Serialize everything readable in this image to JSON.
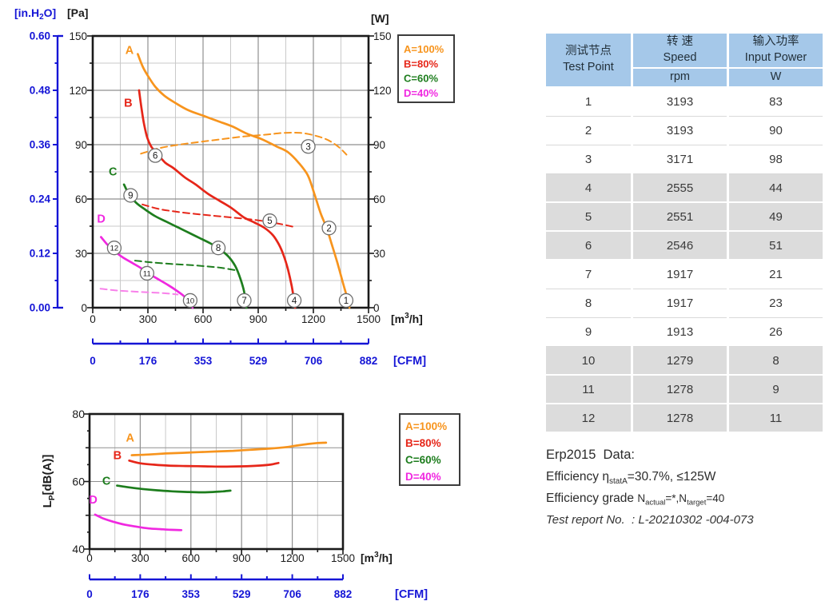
{
  "colors": {
    "orange": "#F7941D",
    "red": "#E62619",
    "green": "#1D7D1D",
    "magenta": "#F028E0",
    "magenta_dash": "#F880EA",
    "blue": "#1515D6",
    "grid_major": "#8F8F8F",
    "grid_minor": "#C9C9C9",
    "frame": "#1A1A1A",
    "tick_text": "#1a1a1a",
    "table_header_bg": "#A5C8E9",
    "table_row_gray": "#DCDCDC",
    "point_circle_stroke": "#6e6e6e"
  },
  "chart_data": [
    {
      "id": "pq-power-chart",
      "type": "line",
      "title": "Fan pressure / input power vs airflow",
      "x_axis": {
        "unit_label": "[m3/h]",
        "ticks": [
          "0",
          "300",
          "600",
          "900",
          "1200",
          "1500"
        ],
        "max": 1500,
        "minor_step": 150
      },
      "x_axis_cfm": {
        "unit_label": "[CFM]",
        "ticks": [
          "0",
          "176",
          "353",
          "529",
          "706",
          "882"
        ]
      },
      "y_axis_pa": {
        "unit_label": "[Pa]",
        "ticks": [
          "150",
          "120",
          "90",
          "60",
          "30",
          "0"
        ],
        "max": 150,
        "minor_step": 15
      },
      "y_axis_inh2o": {
        "unit_label": "[in.H2O]",
        "ticks": [
          "0.60",
          "0.48",
          "0.36",
          "0.24",
          "0.12",
          "0.00"
        ]
      },
      "y_axis_w": {
        "unit_label": "[W]",
        "ticks": [
          "150",
          "120",
          "90",
          "60",
          "30",
          "0"
        ]
      },
      "legend": [
        {
          "label": "A=100%",
          "color_key": "orange"
        },
        {
          "label": "B=80%",
          "color_key": "red"
        },
        {
          "label": "C=60%",
          "color_key": "green"
        },
        {
          "label": "D=40%",
          "color_key": "magenta"
        }
      ],
      "series": [
        {
          "name": "A",
          "kind": "pressure",
          "line": "solid",
          "color_key": "orange",
          "label_at": [
            200,
            140
          ],
          "points": [
            [
              245,
              140
            ],
            [
              272,
              133
            ],
            [
              300,
              128
            ],
            [
              340,
              122
            ],
            [
              390,
              117
            ],
            [
              450,
              113
            ],
            [
              520,
              109
            ],
            [
              600,
              106
            ],
            [
              680,
              103
            ],
            [
              760,
              100
            ],
            [
              840,
              96
            ],
            [
              920,
              93
            ],
            [
              1000,
              89
            ],
            [
              1060,
              86
            ],
            [
              1120,
              80
            ],
            [
              1170,
              73
            ],
            [
              1205,
              63
            ],
            [
              1240,
              52
            ],
            [
              1272,
              44
            ],
            [
              1300,
              35
            ],
            [
              1330,
              25
            ],
            [
              1360,
              14
            ],
            [
              1388,
              4
            ],
            [
              1396,
              0
            ]
          ]
        },
        {
          "name": "B",
          "kind": "pressure",
          "line": "solid",
          "color_key": "red",
          "label_at": [
            193,
            111
          ],
          "points": [
            [
              252,
              120
            ],
            [
              264,
              111
            ],
            [
              278,
              102
            ],
            [
              296,
              94
            ],
            [
              318,
              89
            ],
            [
              350,
              85
            ],
            [
              395,
              80
            ],
            [
              440,
              77
            ],
            [
              500,
              72
            ],
            [
              560,
              68
            ],
            [
              625,
              63
            ],
            [
              690,
              59
            ],
            [
              755,
              55
            ],
            [
              820,
              50
            ],
            [
              880,
              47
            ],
            [
              935,
              44
            ],
            [
              980,
              40
            ],
            [
              1012,
              35
            ],
            [
              1038,
              29
            ],
            [
              1062,
              21
            ],
            [
              1082,
              12
            ],
            [
              1095,
              4
            ],
            [
              1100,
              0
            ]
          ]
        },
        {
          "name": "C",
          "kind": "pressure",
          "line": "solid",
          "color_key": "green",
          "label_at": [
            110,
            73
          ],
          "points": [
            [
              170,
              68
            ],
            [
              195,
              63
            ],
            [
              235,
              58
            ],
            [
              288,
              54
            ],
            [
              340,
              50.5
            ],
            [
              400,
              47.5
            ],
            [
              460,
              44.5
            ],
            [
              520,
              41.5
            ],
            [
              580,
              38.5
            ],
            [
              640,
              35.5
            ],
            [
              695,
              32
            ],
            [
              740,
              28
            ],
            [
              775,
              23
            ],
            [
              803,
              16
            ],
            [
              823,
              9
            ],
            [
              836,
              0
            ]
          ]
        },
        {
          "name": "D",
          "kind": "pressure",
          "line": "solid",
          "color_key": "magenta",
          "label_at": [
            46,
            47
          ],
          "points": [
            [
              45,
              39
            ],
            [
              78,
              35
            ],
            [
              115,
              31.5
            ],
            [
              160,
              28
            ],
            [
              210,
              25
            ],
            [
              260,
              22
            ],
            [
              310,
              18.5
            ],
            [
              360,
              15.5
            ],
            [
              410,
              12.5
            ],
            [
              455,
              9.5
            ],
            [
              495,
              6.5
            ],
            [
              525,
              3.5
            ],
            [
              543,
              0
            ]
          ]
        },
        {
          "name": "A-power",
          "kind": "power",
          "line": "dashed",
          "color_key": "orange",
          "points": [
            [
              262,
              85
            ],
            [
              360,
              88
            ],
            [
              470,
              90
            ],
            [
              580,
              91.5
            ],
            [
              700,
              93
            ],
            [
              820,
              94.5
            ],
            [
              940,
              95.5
            ],
            [
              1040,
              96.5
            ],
            [
              1130,
              96.5
            ],
            [
              1210,
              95
            ],
            [
              1280,
              92.5
            ],
            [
              1340,
              88.5
            ],
            [
              1380,
              84.5
            ]
          ]
        },
        {
          "name": "B-power",
          "kind": "power",
          "line": "dashed",
          "color_key": "red",
          "points": [
            [
              270,
              57
            ],
            [
              360,
              54.5
            ],
            [
              455,
              53
            ],
            [
              555,
              51.8
            ],
            [
              655,
              50.8
            ],
            [
              755,
              49.8
            ],
            [
              855,
              48.8
            ],
            [
              950,
              47.5
            ],
            [
              1030,
              46
            ],
            [
              1098,
              44.5
            ]
          ]
        },
        {
          "name": "C-power",
          "kind": "power",
          "line": "dashed",
          "color_key": "green",
          "points": [
            [
              230,
              26
            ],
            [
              320,
              25
            ],
            [
              420,
              24.2
            ],
            [
              520,
              23.6
            ],
            [
              620,
              22.8
            ],
            [
              700,
              22
            ],
            [
              782,
              20.6
            ]
          ]
        },
        {
          "name": "D-power",
          "kind": "power",
          "line": "dashed",
          "color_key": "magenta_dash",
          "points": [
            [
              42,
              10.5
            ],
            [
              120,
              9.6
            ],
            [
              210,
              9
            ],
            [
              300,
              8.5
            ],
            [
              390,
              8
            ],
            [
              462,
              7.3
            ]
          ]
        }
      ],
      "test_points": [
        {
          "n": "1",
          "x": 1378,
          "y": 4
        },
        {
          "n": "2",
          "x": 1285,
          "y": 44
        },
        {
          "n": "3",
          "x": 1172,
          "y": 89
        },
        {
          "n": "4",
          "x": 1096,
          "y": 4
        },
        {
          "n": "5",
          "x": 963,
          "y": 48
        },
        {
          "n": "6",
          "x": 340,
          "y": 84
        },
        {
          "n": "7",
          "x": 824,
          "y": 4
        },
        {
          "n": "8",
          "x": 683,
          "y": 33
        },
        {
          "n": "9",
          "x": 206,
          "y": 62
        },
        {
          "n": "10",
          "x": 530,
          "y": 4
        },
        {
          "n": "11",
          "x": 295,
          "y": 19
        },
        {
          "n": "12",
          "x": 117,
          "y": 33
        }
      ]
    },
    {
      "id": "noise-chart",
      "type": "line",
      "title": "Sound pressure level vs airflow",
      "x_axis": {
        "unit_label": "[m3/h]",
        "ticks": [
          "0",
          "300",
          "600",
          "900",
          "1200",
          "1500"
        ],
        "max": 1500,
        "minor_step": 150
      },
      "x_axis_cfm": {
        "unit_label": "[CFM]",
        "ticks": [
          "0",
          "176",
          "353",
          "529",
          "706",
          "882"
        ]
      },
      "y_axis": {
        "unit_label": "LP[dB(A)]",
        "ticks": [
          "80",
          "60",
          "40"
        ],
        "min": 40,
        "max": 80,
        "grid_step": 10
      },
      "legend": [
        {
          "label": "A=100%",
          "color_key": "orange"
        },
        {
          "label": "B=80%",
          "color_key": "red"
        },
        {
          "label": "C=60%",
          "color_key": "green"
        },
        {
          "label": "D=40%",
          "color_key": "magenta"
        }
      ],
      "series": [
        {
          "name": "A",
          "line": "solid",
          "color_key": "orange",
          "label_at": [
            240,
            71.8
          ],
          "points": [
            [
              250,
              67.8
            ],
            [
              350,
              68
            ],
            [
              450,
              68.3
            ],
            [
              550,
              68.5
            ],
            [
              650,
              68.7
            ],
            [
              750,
              68.9
            ],
            [
              850,
              69.1
            ],
            [
              950,
              69.4
            ],
            [
              1050,
              69.7
            ],
            [
              1150,
              70.1
            ],
            [
              1220,
              70.6
            ],
            [
              1290,
              71.1
            ],
            [
              1350,
              71.4
            ],
            [
              1400,
              71.5
            ]
          ]
        },
        {
          "name": "B",
          "line": "solid",
          "color_key": "red",
          "label_at": [
            165,
            66.6
          ],
          "points": [
            [
              235,
              66.2
            ],
            [
              300,
              65.4
            ],
            [
              380,
              65
            ],
            [
              470,
              64.7
            ],
            [
              570,
              64.6
            ],
            [
              680,
              64.5
            ],
            [
              790,
              64.4
            ],
            [
              900,
              64.5
            ],
            [
              1000,
              64.7
            ],
            [
              1070,
              65
            ],
            [
              1118,
              65.5
            ]
          ]
        },
        {
          "name": "C",
          "line": "solid",
          "color_key": "green",
          "label_at": [
            100,
            59
          ],
          "points": [
            [
              163,
              58.8
            ],
            [
              230,
              58.3
            ],
            [
              310,
              57.8
            ],
            [
              400,
              57.4
            ],
            [
              490,
              57.1
            ],
            [
              580,
              56.9
            ],
            [
              660,
              56.8
            ],
            [
              730,
              56.9
            ],
            [
              790,
              57.1
            ],
            [
              834,
              57.3
            ]
          ]
        },
        {
          "name": "D",
          "line": "solid",
          "color_key": "magenta",
          "label_at": [
            22,
            53.5
          ],
          "points": [
            [
              33,
              50.2
            ],
            [
              80,
              49.1
            ],
            [
              140,
              48.1
            ],
            [
              210,
              47.2
            ],
            [
              280,
              46.6
            ],
            [
              350,
              46.1
            ],
            [
              420,
              45.9
            ],
            [
              480,
              45.7
            ],
            [
              543,
              45.6
            ]
          ]
        }
      ]
    }
  ],
  "table": {
    "header": {
      "col1_cn": "测试节点",
      "col1_en": "Test Point",
      "col2_cn": "转 速",
      "col2_en": "Speed",
      "col2_unit": "rpm",
      "col3_cn": "输入功率",
      "col3_en": "Input Power",
      "col3_unit": "W"
    },
    "rows": [
      {
        "point": "1",
        "speed": "3193",
        "power": "83",
        "shade": "w"
      },
      {
        "point": "2",
        "speed": "3193",
        "power": "90",
        "shade": "w"
      },
      {
        "point": "3",
        "speed": "3171",
        "power": "98",
        "shade": "w"
      },
      {
        "point": "4",
        "speed": "2555",
        "power": "44",
        "shade": "g"
      },
      {
        "point": "5",
        "speed": "2551",
        "power": "49",
        "shade": "g"
      },
      {
        "point": "6",
        "speed": "2546",
        "power": "51",
        "shade": "g"
      },
      {
        "point": "7",
        "speed": "1917",
        "power": "21",
        "shade": "w"
      },
      {
        "point": "8",
        "speed": "1917",
        "power": "23",
        "shade": "w"
      },
      {
        "point": "9",
        "speed": "1913",
        "power": "26",
        "shade": "w"
      },
      {
        "point": "10",
        "speed": "1279",
        "power": "8",
        "shade": "g"
      },
      {
        "point": "11",
        "speed": "1278",
        "power": "9",
        "shade": "g"
      },
      {
        "point": "12",
        "speed": "1278",
        "power": "11",
        "shade": "g"
      }
    ]
  },
  "erp": {
    "title": "Erp2015  Data:",
    "eff_prefix": "Efficiency η",
    "eff_sub": "statA",
    "eff_value": "=30.7%, ≤125W",
    "grade_prefix": "Efficiency grade ",
    "grade_n1": "N",
    "grade_sub1": "actual",
    "grade_mid": "=*,N",
    "grade_sub2": "target",
    "grade_suffix": "=40",
    "report": "Test report No.  : L-20210302 -004-073"
  }
}
